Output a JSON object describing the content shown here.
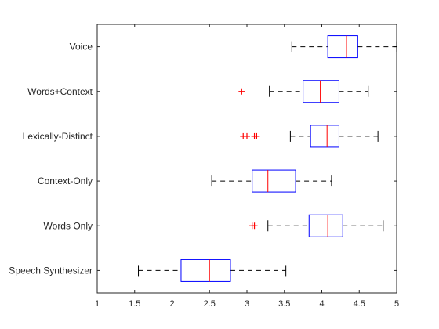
{
  "chart_data": {
    "type": "boxplot",
    "orientation": "horizontal",
    "title": "",
    "xlabel": "",
    "ylabel": "",
    "xlim": [
      1,
      5
    ],
    "xticks": [
      "1",
      "1.5",
      "2",
      "2.5",
      "3",
      "3.5",
      "4",
      "4.5",
      "5"
    ],
    "grid": false,
    "box_color": "#0000ff",
    "median_color": "#ff0000",
    "whisker_color": "#000000",
    "outlier_color": "#ff0000",
    "categories": [
      {
        "label": "Voice",
        "whisker_low": 3.6,
        "q1": 4.08,
        "median": 4.33,
        "q3": 4.48,
        "whisker_high": 5.0,
        "outliers": []
      },
      {
        "label": "Words+Context",
        "whisker_low": 3.3,
        "q1": 3.75,
        "median": 3.98,
        "q3": 4.23,
        "whisker_high": 4.62,
        "outliers": [
          2.93
        ]
      },
      {
        "label": "Lexically-Distinct",
        "whisker_low": 3.58,
        "q1": 3.85,
        "median": 4.07,
        "q3": 4.23,
        "whisker_high": 4.75,
        "outliers": [
          2.95,
          3.0,
          3.1,
          3.13
        ]
      },
      {
        "label": "Context-Only",
        "whisker_low": 2.53,
        "q1": 3.07,
        "median": 3.28,
        "q3": 3.65,
        "whisker_high": 4.13,
        "outliers": []
      },
      {
        "label": "Words Only",
        "whisker_low": 3.28,
        "q1": 3.83,
        "median": 4.08,
        "q3": 4.28,
        "whisker_high": 4.82,
        "outliers": [
          3.07,
          3.1
        ]
      },
      {
        "label": "Speech Synthesizer",
        "whisker_low": 1.55,
        "q1": 2.12,
        "median": 2.5,
        "q3": 2.78,
        "whisker_high": 3.52,
        "outliers": []
      }
    ]
  }
}
